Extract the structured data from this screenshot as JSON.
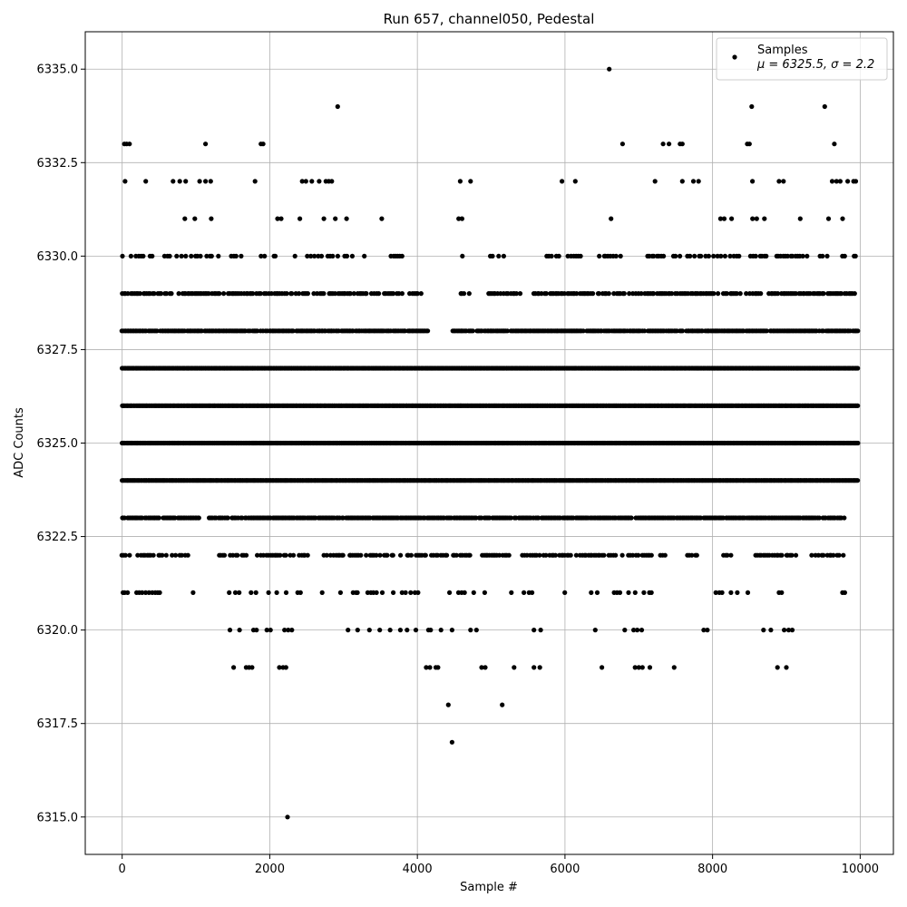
{
  "chart_data": {
    "type": "scatter",
    "title": "Run 657, channel050, Pedestal",
    "xlabel": "Sample #",
    "ylabel": "ADC Counts",
    "xlim": [
      -500,
      10450
    ],
    "ylim": [
      6314,
      6336
    ],
    "x_ticks": [
      0,
      2000,
      4000,
      6000,
      8000,
      10000
    ],
    "y_ticks": [
      6315.0,
      6317.5,
      6320.0,
      6322.5,
      6325.0,
      6327.5,
      6330.0,
      6332.5,
      6335.0
    ],
    "x_tick_labels": [
      "0",
      "2000",
      "4000",
      "6000",
      "8000",
      "10000"
    ],
    "y_tick_labels": [
      "6315.0",
      "6317.5",
      "6320.0",
      "6322.5",
      "6325.0",
      "6327.5",
      "6330.0",
      "6332.5",
      "6335.0"
    ],
    "grid": true,
    "legend_position": "top-right",
    "marker_color": "#000000",
    "series": [
      {
        "name": "Samples",
        "stats_label": "μ = 6325.5, σ = 2.2",
        "points": [
          [
            2240,
            6315
          ],
          [
            4470,
            6317
          ],
          [
            4420,
            6318
          ],
          [
            5150,
            6318
          ],
          [
            1510,
            6319
          ],
          [
            1680,
            6319
          ],
          [
            1720,
            6319
          ],
          [
            1760,
            6319
          ],
          [
            2130,
            6319
          ],
          [
            2180,
            6319
          ],
          [
            2220,
            6319
          ],
          [
            4120,
            6319
          ],
          [
            4170,
            6319
          ],
          [
            4250,
            6319
          ],
          [
            4280,
            6319
          ],
          [
            4870,
            6319
          ],
          [
            4920,
            6319
          ],
          [
            5310,
            6319
          ],
          [
            5580,
            6319
          ],
          [
            5660,
            6319
          ],
          [
            6500,
            6319
          ],
          [
            6950,
            6319
          ],
          [
            7000,
            6319
          ],
          [
            7050,
            6319
          ],
          [
            7150,
            6319
          ],
          [
            7480,
            6319
          ],
          [
            8880,
            6319
          ],
          [
            9000,
            6319
          ],
          [
            1460,
            6320
          ],
          [
            1590,
            6320
          ],
          [
            1780,
            6320
          ],
          [
            1820,
            6320
          ],
          [
            1960,
            6320
          ],
          [
            2010,
            6320
          ],
          [
            2200,
            6320
          ],
          [
            2250,
            6320
          ],
          [
            2300,
            6320
          ],
          [
            3060,
            6320
          ],
          [
            3190,
            6320
          ],
          [
            3350,
            6320
          ],
          [
            3490,
            6320
          ],
          [
            3630,
            6320
          ],
          [
            3770,
            6320
          ],
          [
            3860,
            6320
          ],
          [
            3980,
            6320
          ],
          [
            4150,
            6320
          ],
          [
            4180,
            6320
          ],
          [
            4320,
            6320
          ],
          [
            4470,
            6320
          ],
          [
            4720,
            6320
          ],
          [
            4800,
            6320
          ],
          [
            5580,
            6320
          ],
          [
            5670,
            6320
          ],
          [
            6410,
            6320
          ],
          [
            6810,
            6320
          ],
          [
            6930,
            6320
          ],
          [
            6980,
            6320
          ],
          [
            7040,
            6320
          ],
          [
            7880,
            6320
          ],
          [
            7930,
            6320
          ],
          [
            8690,
            6320
          ],
          [
            8790,
            6320
          ],
          [
            8970,
            6320
          ],
          [
            9030,
            6320
          ],
          [
            9080,
            6320
          ],
          [
            8530,
            6334
          ],
          [
            2920,
            6334
          ],
          [
            9520,
            6334
          ],
          [
            6600,
            6335
          ],
          [
            30,
            6333
          ],
          [
            60,
            6333
          ],
          [
            100,
            6333
          ],
          [
            1130,
            6333
          ],
          [
            1880,
            6333
          ],
          [
            1910,
            6333
          ],
          [
            6780,
            6333
          ],
          [
            7330,
            6333
          ],
          [
            7410,
            6333
          ],
          [
            7560,
            6333
          ],
          [
            7590,
            6333
          ],
          [
            8470,
            6333
          ],
          [
            8500,
            6333
          ],
          [
            9650,
            6333
          ],
          [
            40,
            6332
          ],
          [
            320,
            6332
          ],
          [
            690,
            6332
          ],
          [
            780,
            6332
          ],
          [
            860,
            6332
          ],
          [
            1050,
            6332
          ],
          [
            1130,
            6332
          ],
          [
            1200,
            6332
          ],
          [
            1800,
            6332
          ],
          [
            2440,
            6332
          ],
          [
            2490,
            6332
          ],
          [
            2570,
            6332
          ],
          [
            2670,
            6332
          ],
          [
            2760,
            6332
          ],
          [
            2800,
            6332
          ],
          [
            2840,
            6332
          ],
          [
            4580,
            6332
          ],
          [
            4720,
            6332
          ],
          [
            5960,
            6332
          ],
          [
            6140,
            6332
          ],
          [
            7220,
            6332
          ],
          [
            7590,
            6332
          ],
          [
            7740,
            6332
          ],
          [
            7810,
            6332
          ],
          [
            8540,
            6332
          ],
          [
            8900,
            6332
          ],
          [
            8960,
            6332
          ],
          [
            9620,
            6332
          ],
          [
            9680,
            6332
          ],
          [
            9730,
            6332
          ],
          [
            9830,
            6332
          ],
          [
            9910,
            6332
          ],
          [
            9940,
            6332
          ]
        ]
      }
    ]
  }
}
